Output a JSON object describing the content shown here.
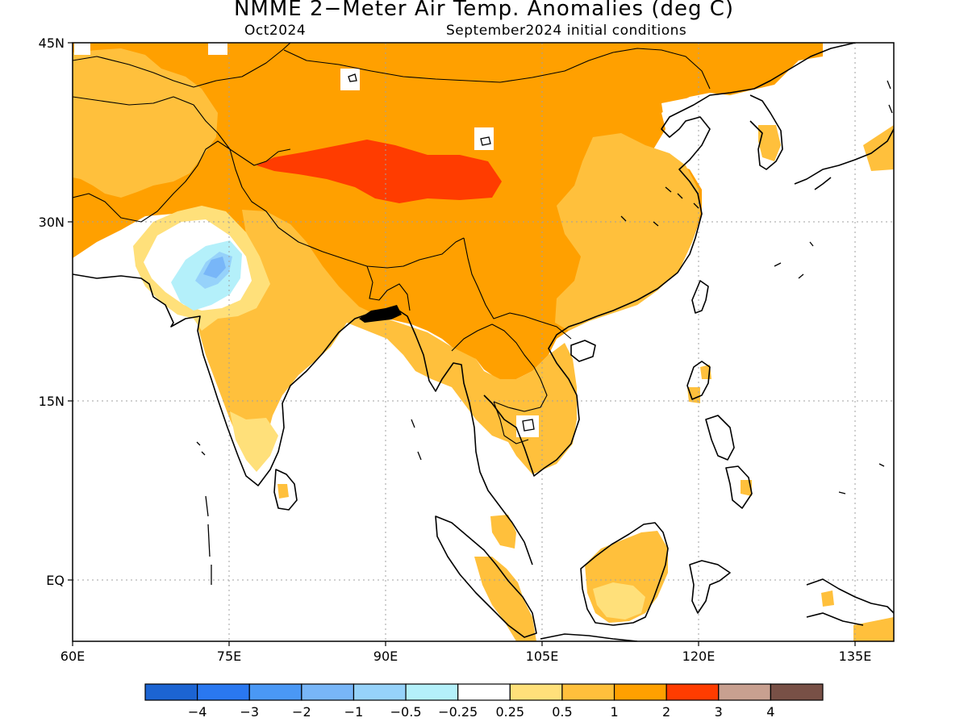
{
  "title": "NMME 2−Meter Air Temp. Anomalies (deg C)",
  "valid_month": "Oct2024",
  "init_conditions": "September2024 initial conditions",
  "axes": {
    "lat_labels": [
      "45N",
      "30N",
      "15N",
      "EQ"
    ],
    "lon_labels": [
      "60E",
      "75E",
      "90E",
      "105E",
      "120E",
      "135E"
    ]
  },
  "colorbar": {
    "colors": [
      "#1c64d2",
      "#2a78f0",
      "#4a98f5",
      "#78b6f8",
      "#96d2fa",
      "#b4f0fa",
      "#ffffff",
      "#ffe07a",
      "#ffc03c",
      "#ffa000",
      "#ff3c00",
      "#c8a090",
      "#785046"
    ],
    "labels": [
      "−4",
      "−3",
      "−2",
      "−1",
      "−0.5",
      "−0.25",
      "0.25",
      "0.5",
      "1",
      "2",
      "3",
      "4"
    ]
  },
  "anomaly_colors": {
    "gt_0_25": "#ffe07a",
    "gt_0_5": "#ffc03c",
    "gt_1": "#ffa000",
    "gt_2": "#ff3c00",
    "neg_light": "#b4f0fa",
    "neg_mid": "#96d2fa",
    "neg_strong": "#78b6f8"
  }
}
